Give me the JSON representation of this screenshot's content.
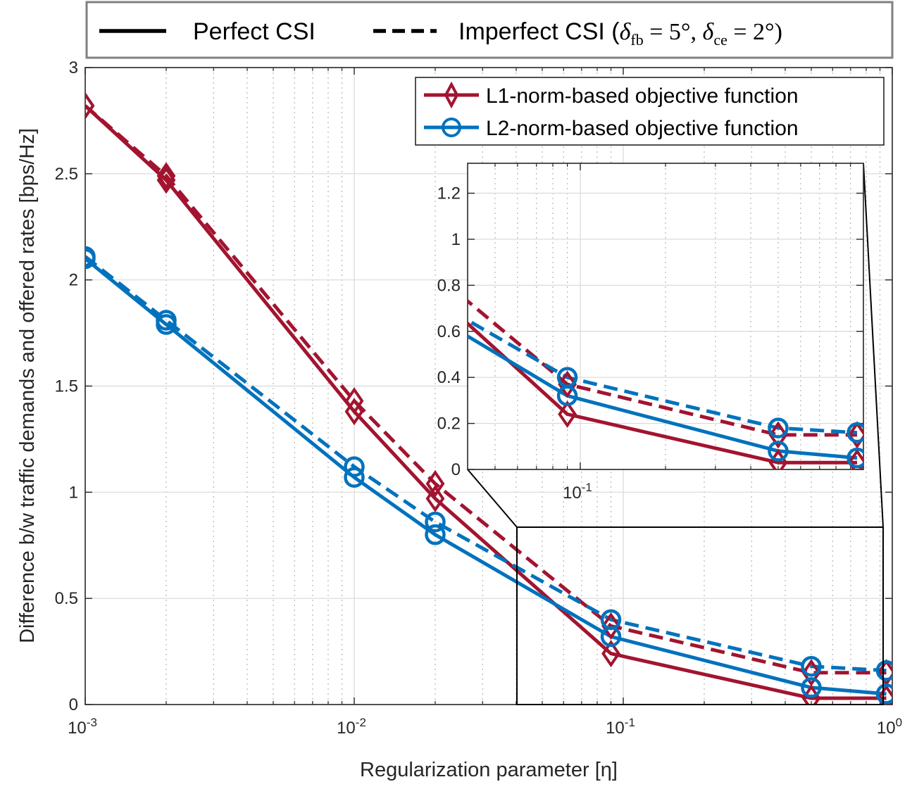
{
  "chart_data": {
    "type": "line",
    "xscale": "log",
    "xlabel": "Regularization parameter [η]",
    "ylabel": "Difference b/w traffic demands and offered rates [bps/Hz]",
    "xlim": [
      0.001,
      1
    ],
    "ylim": [
      0,
      3
    ],
    "x_ticks": [
      {
        "value": 0.001,
        "base": "10",
        "exp": "-3"
      },
      {
        "value": 0.01,
        "base": "10",
        "exp": "-2"
      },
      {
        "value": 0.1,
        "base": "10",
        "exp": "-1"
      },
      {
        "value": 1,
        "base": "10",
        "exp": "0"
      }
    ],
    "y_ticks": [
      {
        "value": 0,
        "label": "0"
      },
      {
        "value": 0.5,
        "label": "0.5"
      },
      {
        "value": 1,
        "label": "1"
      },
      {
        "value": 1.5,
        "label": "1.5"
      },
      {
        "value": 2,
        "label": "2"
      },
      {
        "value": 2.5,
        "label": "2.5"
      },
      {
        "value": 3,
        "label": "3"
      }
    ],
    "x": [
      0.001,
      0.002,
      0.01,
      0.02,
      0.09,
      0.5,
      0.95
    ],
    "series": [
      {
        "name": "L1-norm-based objective function (Perfect CSI)",
        "style": "solid",
        "marker": "diamond",
        "color": "#A2142F",
        "values": [
          2.82,
          2.47,
          1.38,
          0.97,
          0.24,
          0.03,
          0.03
        ]
      },
      {
        "name": "L1-norm-based objective function (Imperfect CSI)",
        "style": "dashed",
        "marker": "diamond",
        "color": "#A2142F",
        "values": [
          2.82,
          2.49,
          1.43,
          1.04,
          0.37,
          0.15,
          0.15
        ]
      },
      {
        "name": "L2-norm-based objective function (Perfect CSI)",
        "style": "solid",
        "marker": "circle",
        "color": "#0072BD",
        "values": [
          2.1,
          1.79,
          1.07,
          0.8,
          0.32,
          0.08,
          0.05
        ]
      },
      {
        "name": "L2-norm-based objective function (Imperfect CSI)",
        "style": "dashed",
        "marker": "circle",
        "color": "#0072BD",
        "values": [
          2.11,
          1.81,
          1.12,
          0.86,
          0.4,
          0.18,
          0.16
        ]
      }
    ],
    "legend_top": {
      "placement": "top",
      "perfect": "Perfect CSI",
      "imperfect_prefix": "Imperfect CSI (",
      "delta": "δ",
      "fb": "fb",
      "fb_value": " = 5°, ",
      "ce": "ce",
      "ce_value": " = 2°)"
    },
    "legend_inner": {
      "placement": "top-right",
      "l1": "L1-norm-based objective function",
      "l2": "L2-norm-based objective function"
    },
    "inset": {
      "xlim": [
        0.04,
        1
      ],
      "ylim": [
        0,
        1.33
      ],
      "y_ticks": [
        {
          "value": 0,
          "label": "0"
        },
        {
          "value": 0.2,
          "label": "0.2"
        },
        {
          "value": 0.4,
          "label": "0.4"
        },
        {
          "value": 0.6,
          "label": "0.6"
        },
        {
          "value": 0.8,
          "label": "0.8"
        },
        {
          "value": 1,
          "label": "1"
        },
        {
          "value": 1.2,
          "label": "1.2"
        }
      ],
      "x_ticks": [
        {
          "value": 0.1,
          "base": "10",
          "exp": "-1"
        }
      ]
    }
  }
}
